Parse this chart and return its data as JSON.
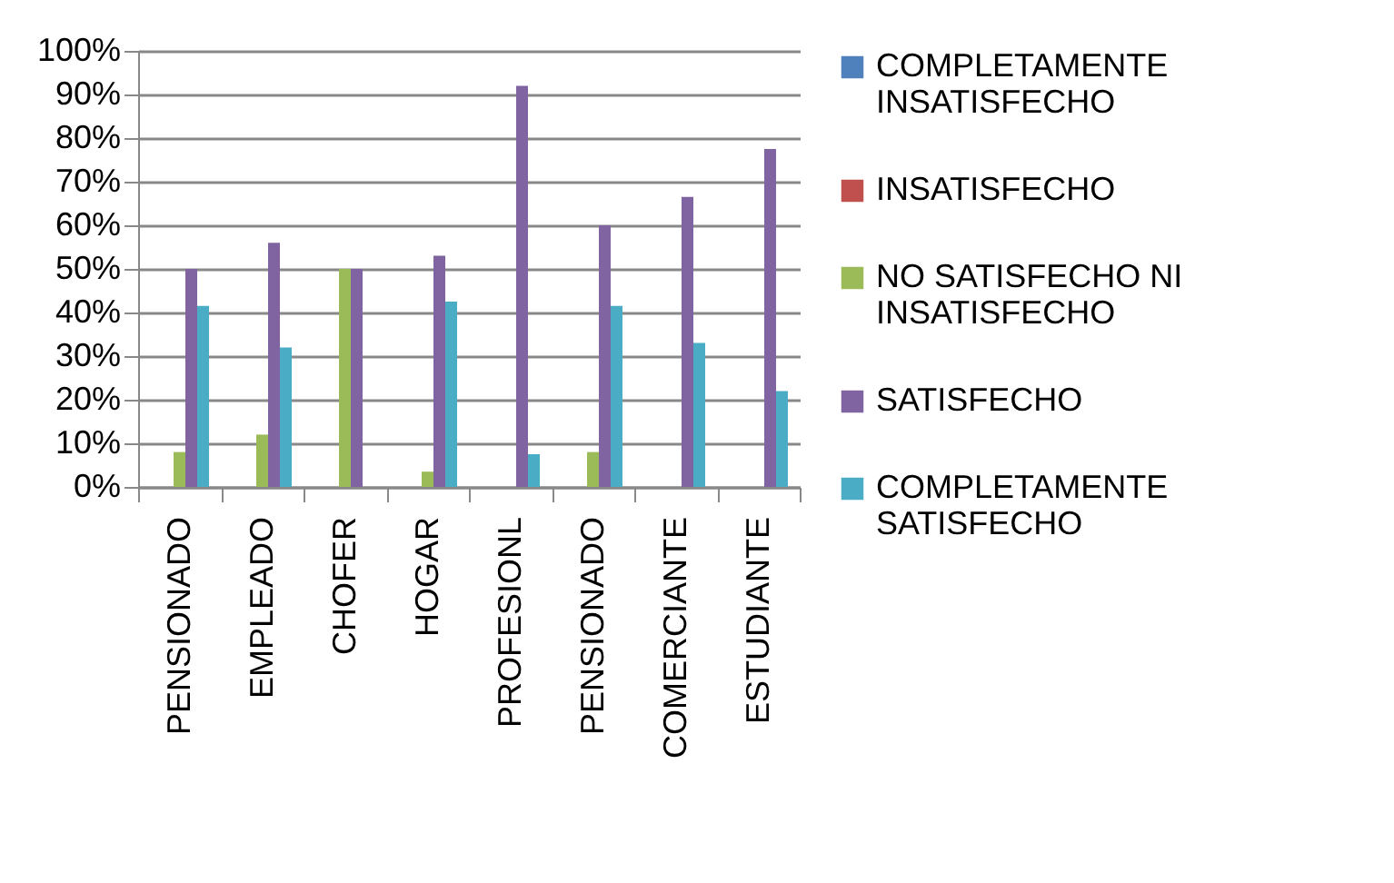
{
  "chart_data": {
    "type": "bar",
    "categories": [
      "PENSIONADO",
      "EMPLEADO",
      "CHOFER",
      "HOGAR",
      "PROFESIONL",
      "PENSIONADO",
      "COMERCIANTE",
      "ESTUDIANTE"
    ],
    "series": [
      {
        "name": "COMPLETAMENTE INSATISFECHO",
        "color": "#4f81bd",
        "values": [
          0,
          0,
          0,
          0,
          0,
          0,
          0,
          0
        ]
      },
      {
        "name": "INSATISFECHO",
        "color": "#c0504d",
        "values": [
          0,
          0,
          0,
          0,
          0,
          0,
          0,
          0
        ]
      },
      {
        "name": "NO SATISFECHO NI INSATISFECHO",
        "color": "#9bbb59",
        "values": [
          8,
          12,
          50,
          3.5,
          0,
          8,
          0,
          0
        ]
      },
      {
        "name": "SATISFECHO",
        "color": "#8064a2",
        "values": [
          50,
          56,
          50,
          53,
          92,
          60,
          66.5,
          77.5
        ]
      },
      {
        "name": "COMPLETAMENTE SATISFECHO",
        "color": "#4bacc6",
        "values": [
          41.5,
          32,
          0,
          42.5,
          7.5,
          41.5,
          33,
          22
        ]
      }
    ],
    "ylim": [
      0,
      100
    ],
    "yticks": [
      {
        "value": 0,
        "label": "0%"
      },
      {
        "value": 10,
        "label": "10%"
      },
      {
        "value": 20,
        "label": "20%"
      },
      {
        "value": 30,
        "label": "30%"
      },
      {
        "value": 40,
        "label": "40%"
      },
      {
        "value": 50,
        "label": "50%"
      },
      {
        "value": 60,
        "label": "60%"
      },
      {
        "value": 70,
        "label": "70%"
      },
      {
        "value": 80,
        "label": "80%"
      },
      {
        "value": 90,
        "label": "90%"
      },
      {
        "value": 100,
        "label": "100%"
      }
    ],
    "grid": "y",
    "legend": "right"
  }
}
